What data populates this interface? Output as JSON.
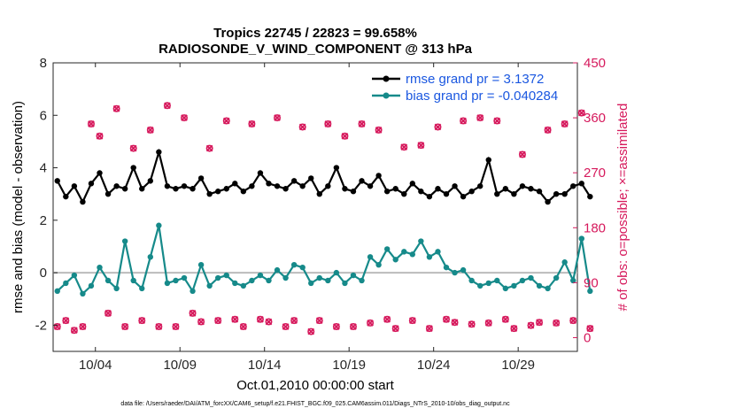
{
  "chart_data": {
    "type": "line",
    "title_line1": "Tropics 22745 / 22823 = 99.658%",
    "title_line2": "RADIOSONDE_V_WIND_COMPONENT @ 313 hPa",
    "xlabel": "Oct.01,2010 00:00:00 start",
    "ylabel_left": "rmse and bias (model - observation)",
    "ylabel_right": "# of obs: o=possible; ×=assimilated",
    "footer": "data file: /Users/raeder/DAI/ATM_forcXX/CAM6_setup/f.e21.FHIST_BGC.f09_025.CAM6assim.011/Diags_NTrS_2010-10/obs_diag_output.nc",
    "xlim": [
      1.5,
      32.5
    ],
    "ylim_left": [
      -3,
      8
    ],
    "ylim_right": [
      -22.5,
      450
    ],
    "x_ticks": [
      4,
      9,
      14,
      19,
      24,
      29
    ],
    "x_tick_labels": [
      "10/04",
      "10/09",
      "10/14",
      "10/19",
      "10/24",
      "10/29"
    ],
    "y_left_ticks": [
      -2,
      0,
      2,
      4,
      6,
      8
    ],
    "y_right_ticks": [
      0,
      90,
      180,
      270,
      360,
      450
    ],
    "colors": {
      "rmse": "#000000",
      "bias": "#168a8a",
      "obs": "#d6195c",
      "legend_text": "#1a57e0",
      "zero_line": "#bbbbbb"
    },
    "series": [
      {
        "name": "rmse grand pr = 3.1372",
        "axis": "left",
        "values": [
          3.5,
          2.9,
          3.3,
          2.7,
          3.4,
          3.8,
          3.0,
          3.3,
          3.2,
          4.0,
          3.2,
          3.5,
          4.6,
          3.3,
          3.2,
          3.3,
          3.2,
          3.6,
          3.0,
          3.1,
          3.2,
          3.4,
          3.1,
          3.3,
          3.8,
          3.4,
          3.3,
          3.2,
          3.5,
          3.3,
          3.6,
          3.0,
          3.3,
          4.0,
          3.2,
          3.1,
          3.5,
          3.3,
          3.7,
          3.1,
          3.2,
          3.0,
          3.4,
          3.1,
          2.9,
          3.2,
          3.0,
          3.3,
          2.9,
          3.1,
          3.3,
          4.3,
          3.0,
          3.2,
          3.0,
          3.3,
          3.2,
          3.1,
          2.7,
          3.0,
          3.0,
          3.3,
          3.4,
          2.9
        ]
      },
      {
        "name": "bias grand pr = -0.040284",
        "axis": "left",
        "values": [
          -0.7,
          -0.4,
          -0.1,
          -0.8,
          -0.5,
          0.2,
          -0.3,
          -0.6,
          1.2,
          -0.3,
          -0.6,
          0.6,
          1.8,
          -0.4,
          -0.3,
          -0.2,
          -0.7,
          0.3,
          -0.5,
          -0.2,
          -0.1,
          -0.4,
          -0.5,
          -0.3,
          -0.1,
          -0.3,
          0.1,
          -0.2,
          0.3,
          0.2,
          -0.4,
          -0.2,
          -0.3,
          0.0,
          -0.4,
          -0.1,
          -0.3,
          0.6,
          0.3,
          0.9,
          0.5,
          0.8,
          0.7,
          1.2,
          0.6,
          0.8,
          0.2,
          0.0,
          0.1,
          -0.3,
          -0.5,
          -0.4,
          -0.3,
          -0.6,
          -0.5,
          -0.3,
          -0.2,
          -0.5,
          -0.6,
          -0.2,
          0.4,
          -0.3,
          1.3,
          -0.7
        ]
      },
      {
        "name": "obs possible",
        "axis": "right",
        "values": [
          18,
          28,
          12,
          18,
          350,
          330,
          40,
          375,
          18,
          310,
          28,
          340,
          18,
          380,
          18,
          360,
          40,
          26,
          310,
          28,
          355,
          30,
          18,
          350,
          30,
          26,
          360,
          18,
          28,
          345,
          10,
          28,
          350,
          18,
          330,
          18,
          350,
          24,
          340,
          30,
          15,
          312,
          28,
          315,
          15,
          345,
          30,
          25,
          355,
          22,
          360,
          24,
          355,
          30,
          15,
          300,
          20,
          25,
          340,
          24,
          350,
          28,
          368,
          15
        ]
      },
      {
        "name": "obs assimilated",
        "axis": "right",
        "values": [
          18,
          28,
          12,
          18,
          350,
          330,
          40,
          375,
          18,
          310,
          28,
          340,
          18,
          380,
          18,
          360,
          40,
          26,
          310,
          28,
          355,
          30,
          18,
          350,
          30,
          26,
          360,
          18,
          28,
          345,
          10,
          28,
          350,
          18,
          330,
          18,
          350,
          24,
          340,
          30,
          15,
          312,
          28,
          315,
          15,
          345,
          30,
          25,
          355,
          22,
          360,
          24,
          355,
          30,
          15,
          300,
          20,
          25,
          340,
          24,
          350,
          28,
          368,
          15
        ]
      }
    ],
    "legend": [
      "rmse grand pr = 3.1372",
      "bias grand pr = -0.040284"
    ]
  }
}
